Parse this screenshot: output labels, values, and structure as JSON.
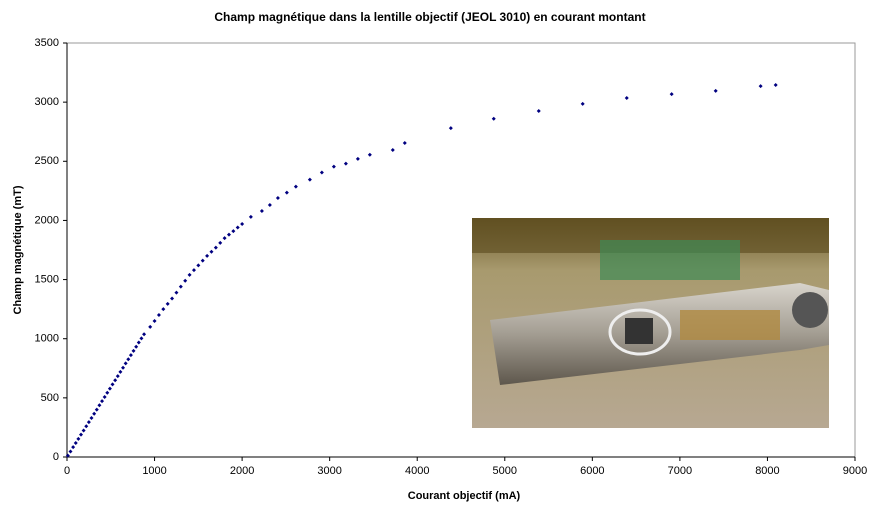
{
  "chart_data": {
    "type": "scatter",
    "title": "Champ magnétique dans la lentille objectif (JEOL 3010) en courant montant",
    "x_label": "Courant objectif (mA)",
    "y_label": "Champ magnétique (mT)",
    "color": "#000080",
    "xlim": [
      0,
      9000
    ],
    "xticks": [
      0,
      1000,
      2000,
      3000,
      4000,
      5000,
      6000,
      7000,
      8000,
      9000
    ],
    "ylim": [
      0,
      3500
    ],
    "yticks": [
      0,
      500,
      1000,
      1500,
      2000,
      2500,
      3000,
      3500
    ],
    "x": [
      10,
      40,
      70,
      100,
      130,
      160,
      190,
      220,
      250,
      280,
      310,
      340,
      370,
      400,
      430,
      460,
      490,
      520,
      550,
      580,
      610,
      640,
      670,
      700,
      730,
      760,
      790,
      820,
      850,
      880,
      950,
      1000,
      1050,
      1100,
      1150,
      1200,
      1250,
      1300,
      1350,
      1400,
      1450,
      1500,
      1550,
      1600,
      1650,
      1700,
      1750,
      1800,
      1850,
      1900,
      1950,
      2000,
      2100,
      2226,
      2317,
      2409,
      2511,
      2614,
      2774,
      2911,
      3048,
      3185,
      3322,
      3459,
      3721,
      3858,
      4384,
      4874,
      5388,
      5890,
      6393,
      6906,
      7409,
      7922,
      8094
    ],
    "values": [
      12,
      47,
      83,
      118,
      153,
      189,
      224,
      260,
      295,
      330,
      366,
      401,
      437,
      472,
      507,
      543,
      578,
      614,
      649,
      684,
      720,
      755,
      791,
      826,
      861,
      897,
      932,
      968,
      1003,
      1038,
      1100,
      1150,
      1200,
      1250,
      1295,
      1340,
      1390,
      1440,
      1490,
      1540,
      1580,
      1620,
      1660,
      1700,
      1735,
      1770,
      1810,
      1850,
      1880,
      1910,
      1940,
      1970,
      2030,
      2080,
      2130,
      2190,
      2235,
      2286,
      2345,
      2405,
      2455,
      2480,
      2520,
      2555,
      2595,
      2655,
      2780,
      2860,
      2925,
      2985,
      3035,
      3068,
      3095,
      3135,
      3145
    ]
  }
}
